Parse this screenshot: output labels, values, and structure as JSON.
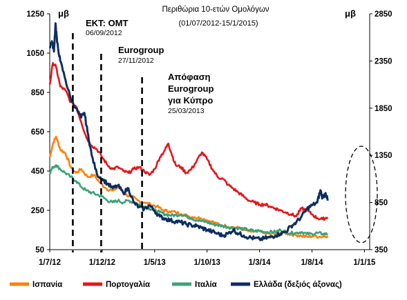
{
  "chart_data": {
    "type": "line",
    "title": "Περιθώρια 10-ετών Ομολόγων",
    "subtitle": "(01/07/2012-15/1/2015)",
    "left_axis": {
      "unit": "μβ",
      "ticks": [
        "1250",
        "1050",
        "850",
        "650",
        "450",
        "250",
        "50"
      ],
      "ylim": [
        50,
        1250
      ]
    },
    "right_axis": {
      "unit": "μβ",
      "ticks": [
        "2850",
        "2350",
        "1850",
        "1350",
        "850",
        "350"
      ],
      "ylim": [
        350,
        2850
      ]
    },
    "x_ticks": [
      "1/7/12",
      "1/12/12",
      "1/5/13",
      "1/10/13",
      "1/3/14",
      "1/8/14",
      "1/1/15"
    ],
    "events": [
      {
        "title": "ΕΚΤ: ΟΜΤ",
        "date": "06/09/2012"
      },
      {
        "title": "Eurogroup",
        "date": "27/11/2012"
      },
      {
        "title": "Απόφαση Eurogroup για Κύπρο",
        "lines": [
          "Απόφαση",
          "Eurogroup",
          "για Κύπρο"
        ],
        "date": "25/03/2013"
      }
    ],
    "series": [
      {
        "name": "Ισπανία",
        "axis": "left",
        "color": "#ff7f0e",
        "values": [
          [
            0,
            520
          ],
          [
            0.3,
            590
          ],
          [
            0.6,
            625
          ],
          [
            1.0,
            560
          ],
          [
            1.5,
            540
          ],
          [
            2.0,
            470
          ],
          [
            2.5,
            440
          ],
          [
            3.0,
            460
          ],
          [
            3.6,
            420
          ],
          [
            4.2,
            430
          ],
          [
            4.8,
            390
          ],
          [
            5.4,
            360
          ],
          [
            6.0,
            350
          ],
          [
            6.6,
            370
          ],
          [
            7.2,
            330
          ],
          [
            7.8,
            320
          ],
          [
            8.4,
            300
          ],
          [
            9.0,
            290
          ],
          [
            9.6,
            280
          ],
          [
            10.2,
            270
          ],
          [
            10.8,
            250
          ],
          [
            11.4,
            245
          ],
          [
            12.0,
            240
          ],
          [
            12.6,
            230
          ],
          [
            13.2,
            220
          ],
          [
            13.8,
            215
          ],
          [
            14.4,
            210
          ],
          [
            15.0,
            200
          ],
          [
            15.6,
            190
          ],
          [
            16.2,
            175
          ],
          [
            16.8,
            170
          ],
          [
            17.4,
            165
          ],
          [
            18.0,
            160
          ],
          [
            18.6,
            150
          ],
          [
            19.2,
            140
          ],
          [
            19.8,
            145
          ],
          [
            20.4,
            135
          ],
          [
            21.0,
            130
          ],
          [
            21.6,
            130
          ],
          [
            22.2,
            140
          ],
          [
            22.8,
            130
          ],
          [
            23.4,
            125
          ],
          [
            24.0,
            120
          ],
          [
            24.6,
            115
          ],
          [
            25.2,
            120
          ],
          [
            25.8,
            115
          ],
          [
            26.5,
            120
          ]
        ]
      },
      {
        "name": "Πορτογαλία",
        "axis": "left",
        "color": "#e8141b",
        "values": [
          [
            0,
            890
          ],
          [
            0.3,
            1000
          ],
          [
            0.6,
            980
          ],
          [
            1.0,
            880
          ],
          [
            1.5,
            860
          ],
          [
            2.0,
            800
          ],
          [
            2.5,
            780
          ],
          [
            3.0,
            700
          ],
          [
            3.5,
            620
          ],
          [
            4.0,
            580
          ],
          [
            4.5,
            560
          ],
          [
            5.0,
            520
          ],
          [
            5.5,
            480
          ],
          [
            6.0,
            460
          ],
          [
            6.5,
            470
          ],
          [
            7.0,
            450
          ],
          [
            7.5,
            440
          ],
          [
            8.0,
            460
          ],
          [
            8.5,
            470
          ],
          [
            9.0,
            450
          ],
          [
            9.5,
            430
          ],
          [
            10.0,
            460
          ],
          [
            10.5,
            520
          ],
          [
            11.0,
            560
          ],
          [
            11.3,
            590
          ],
          [
            11.6,
            540
          ],
          [
            12.0,
            480
          ],
          [
            12.5,
            470
          ],
          [
            13.0,
            440
          ],
          [
            13.5,
            460
          ],
          [
            14.0,
            500
          ],
          [
            14.5,
            545
          ],
          [
            15.0,
            510
          ],
          [
            15.5,
            460
          ],
          [
            16.0,
            420
          ],
          [
            16.5,
            410
          ],
          [
            17.0,
            380
          ],
          [
            17.5,
            360
          ],
          [
            18.0,
            340
          ],
          [
            18.5,
            320
          ],
          [
            19.0,
            300
          ],
          [
            19.5,
            290
          ],
          [
            20.0,
            280
          ],
          [
            20.5,
            280
          ],
          [
            21.0,
            270
          ],
          [
            21.5,
            260
          ],
          [
            22.0,
            250
          ],
          [
            22.5,
            240
          ],
          [
            23.0,
            230
          ],
          [
            23.5,
            220
          ],
          [
            24.0,
            260
          ],
          [
            24.5,
            250
          ],
          [
            25.0,
            230
          ],
          [
            25.5,
            210
          ],
          [
            26.0,
            205
          ],
          [
            26.5,
            215
          ]
        ]
      },
      {
        "name": "Ιταλία",
        "axis": "left",
        "color": "#3da27a",
        "values": [
          [
            0,
            440
          ],
          [
            0.3,
            470
          ],
          [
            0.6,
            480
          ],
          [
            1.0,
            460
          ],
          [
            1.5,
            440
          ],
          [
            2.0,
            420
          ],
          [
            2.5,
            400
          ],
          [
            3.0,
            370
          ],
          [
            3.5,
            350
          ],
          [
            4.0,
            340
          ],
          [
            4.5,
            330
          ],
          [
            5.0,
            320
          ],
          [
            5.5,
            300
          ],
          [
            6.0,
            290
          ],
          [
            6.5,
            300
          ],
          [
            7.0,
            290
          ],
          [
            7.5,
            300
          ],
          [
            8.0,
            290
          ],
          [
            8.5,
            280
          ],
          [
            9.0,
            270
          ],
          [
            9.5,
            260
          ],
          [
            10.0,
            250
          ],
          [
            10.5,
            240
          ],
          [
            11.0,
            230
          ],
          [
            11.5,
            225
          ],
          [
            12.0,
            225
          ],
          [
            12.5,
            230
          ],
          [
            13.0,
            220
          ],
          [
            13.5,
            210
          ],
          [
            14.0,
            200
          ],
          [
            14.5,
            195
          ],
          [
            15.0,
            190
          ],
          [
            15.5,
            180
          ],
          [
            16.0,
            175
          ],
          [
            16.5,
            170
          ],
          [
            17.0,
            165
          ],
          [
            17.5,
            160
          ],
          [
            18.0,
            160
          ],
          [
            18.5,
            155
          ],
          [
            19.0,
            150
          ],
          [
            19.5,
            145
          ],
          [
            20.0,
            145
          ],
          [
            20.5,
            140
          ],
          [
            21.0,
            140
          ],
          [
            21.5,
            140
          ],
          [
            22.0,
            150
          ],
          [
            22.5,
            140
          ],
          [
            23.0,
            135
          ],
          [
            23.5,
            135
          ],
          [
            24.0,
            140
          ],
          [
            24.5,
            130
          ],
          [
            25.0,
            130
          ],
          [
            25.5,
            135
          ],
          [
            26.0,
            130
          ],
          [
            26.5,
            130
          ]
        ]
      },
      {
        "name": "Ελλάδα (δεξιός άξονας)",
        "axis": "right",
        "color": "#0d2e5f",
        "values": [
          [
            0,
            2500
          ],
          [
            0.2,
            2560
          ],
          [
            0.4,
            2450
          ],
          [
            0.55,
            2750
          ],
          [
            0.7,
            2550
          ],
          [
            1.0,
            2350
          ],
          [
            1.5,
            2150
          ],
          [
            2.0,
            1950
          ],
          [
            2.5,
            1850
          ],
          [
            3.0,
            1750
          ],
          [
            3.3,
            1800
          ],
          [
            3.6,
            1600
          ],
          [
            4.0,
            1350
          ],
          [
            4.5,
            1150
          ],
          [
            5.0,
            1100
          ],
          [
            5.5,
            1050
          ],
          [
            6.0,
            1000
          ],
          [
            6.5,
            1030
          ],
          [
            7.0,
            950
          ],
          [
            7.5,
            1000
          ],
          [
            8.0,
            850
          ],
          [
            8.5,
            800
          ],
          [
            9.0,
            780
          ],
          [
            9.5,
            820
          ],
          [
            10.0,
            760
          ],
          [
            10.5,
            700
          ],
          [
            11.0,
            680
          ],
          [
            11.5,
            660
          ],
          [
            12.0,
            650
          ],
          [
            12.5,
            640
          ],
          [
            13.0,
            620
          ],
          [
            13.5,
            610
          ],
          [
            14.0,
            600
          ],
          [
            14.5,
            580
          ],
          [
            15.0,
            560
          ],
          [
            15.5,
            540
          ],
          [
            16.0,
            520
          ],
          [
            16.5,
            500
          ],
          [
            17.0,
            520
          ],
          [
            17.5,
            560
          ],
          [
            18.0,
            520
          ],
          [
            18.5,
            500
          ],
          [
            19.0,
            480
          ],
          [
            19.5,
            470
          ],
          [
            20.0,
            460
          ],
          [
            20.5,
            470
          ],
          [
            21.0,
            480
          ],
          [
            21.5,
            500
          ],
          [
            22.0,
            520
          ],
          [
            22.5,
            540
          ],
          [
            23.0,
            600
          ],
          [
            23.5,
            640
          ],
          [
            24.0,
            700
          ],
          [
            24.5,
            780
          ],
          [
            25.0,
            820
          ],
          [
            25.5,
            850
          ],
          [
            25.8,
            980
          ],
          [
            26.0,
            900
          ],
          [
            26.3,
            950
          ],
          [
            26.5,
            870
          ]
        ]
      }
    ],
    "x_range_months": [
      0,
      30.5
    ],
    "x_tick_months": [
      0,
      5,
      10,
      15,
      20,
      25,
      30
    ],
    "event_months": [
      2.2,
      4.9,
      8.8
    ]
  }
}
